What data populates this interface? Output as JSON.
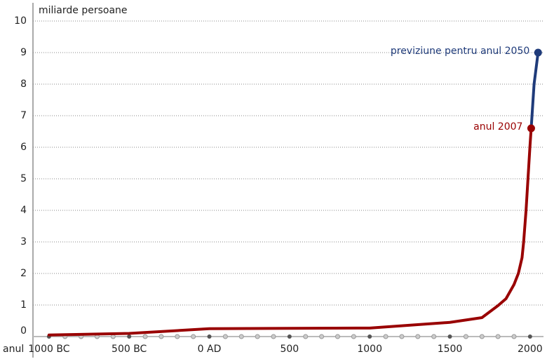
{
  "chart_data": {
    "type": "line",
    "y_label": "miliarde persoane",
    "x_label": "anul",
    "xlim": [
      -1100,
      2110
    ],
    "ylim": [
      0,
      10
    ],
    "yticks": [
      0,
      1,
      2,
      3,
      4,
      5,
      6,
      7,
      8,
      9,
      10
    ],
    "xticks": [
      {
        "value": -1000,
        "label": "1000 BC"
      },
      {
        "value": -500,
        "label": "500 BC"
      },
      {
        "value": 0,
        "label": "0 AD"
      },
      500,
      1000,
      1500,
      2000
    ],
    "xminorticks": [
      -900,
      -800,
      -700,
      -600,
      -400,
      -300,
      -200,
      -100,
      100,
      200,
      300,
      400,
      600,
      700,
      800,
      900,
      1100,
      1200,
      1300,
      1400,
      1600,
      1700,
      1800,
      1900
    ],
    "grid": true,
    "series": [
      {
        "name": "anul 2007",
        "color": "#990000",
        "x": [
          -1000,
          -500,
          0,
          1000,
          1500,
          1700,
          1800,
          1850,
          1900,
          1927,
          1950,
          1960,
          1975,
          1987,
          1999,
          2007
        ],
        "values": [
          0.05,
          0.1,
          0.25,
          0.27,
          0.45,
          0.6,
          0.98,
          1.2,
          1.65,
          2.0,
          2.5,
          3.0,
          4.0,
          5.0,
          6.0,
          6.6
        ]
      },
      {
        "name": "previziune pentru anul 2050",
        "color": "#1f3b7a",
        "x": [
          2007,
          2025,
          2050
        ],
        "values": [
          6.6,
          8.0,
          9.0
        ]
      }
    ]
  }
}
